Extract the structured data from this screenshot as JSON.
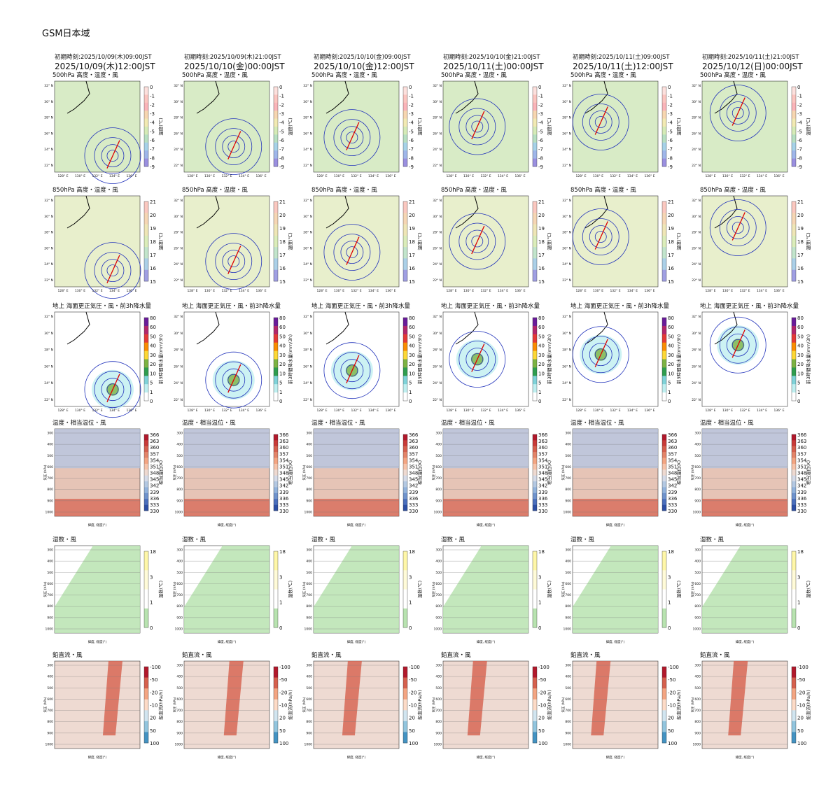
{
  "title": "GSM日本域",
  "columns": [
    {
      "init": "初期時刻:2025/10/09(木)09:00JST",
      "valid": "2025/10/09(木)12:00JST"
    },
    {
      "init": "初期時刻:2025/10/09(木)21:00JST",
      "valid": "2025/10/10(金)00:00JST"
    },
    {
      "init": "初期時刻:2025/10/10(金)09:00JST",
      "valid": "2025/10/10(金)12:00JST"
    },
    {
      "init": "初期時刻:2025/10/10(金)21:00JST",
      "valid": "2025/10/11(土)00:00JST"
    },
    {
      "init": "初期時刻:2025/10/11(土)09:00JST",
      "valid": "2025/10/11(土)12:00JST"
    },
    {
      "init": "初期時刻:2025/10/11(土)21:00JST",
      "valid": "2025/10/12(日)00:00JST"
    }
  ],
  "rows": [
    {
      "title": "500hPa 高度・温度・風",
      "colorbar_label": "温度(℃)",
      "colorbar_ticks": [
        0,
        -1,
        -2,
        -3,
        -4,
        -5,
        -6,
        -7,
        -8,
        -9
      ]
    },
    {
      "title": "850hPa 高度・温度・風",
      "colorbar_label": "温度(℃)",
      "colorbar_ticks": [
        21,
        20,
        19,
        18,
        17,
        16,
        15
      ]
    },
    {
      "title": "地上 海面更正気圧・風・前3h降水量",
      "colorbar_label": "前3時間降水量(mm/3h)",
      "colorbar_ticks": [
        80,
        60,
        50,
        40,
        30,
        20,
        10,
        5,
        1,
        0
      ]
    },
    {
      "title": "温度・相当温位・風",
      "colorbar_label": "相当温位(K)",
      "colorbar_ticks": [
        366,
        363,
        360,
        357,
        354,
        351,
        348,
        345,
        342,
        339,
        336,
        333,
        330
      ]
    },
    {
      "title": "湿数・風",
      "colorbar_label": "湿数(℃)",
      "colorbar_ticks": [
        18,
        3,
        1,
        0
      ]
    },
    {
      "title": "鉛直流・風",
      "colorbar_label": "鉛直流(hPa/h)",
      "colorbar_ticks": [
        -100,
        -50,
        -20,
        -10,
        20,
        50,
        100
      ]
    }
  ],
  "map_axes": {
    "lat": [
      "32° N",
      "30° N",
      "28° N",
      "26° N",
      "24° N",
      "22° N"
    ],
    "lon": [
      "128° E",
      "130° E",
      "132° E",
      "134° E",
      "136° E"
    ]
  },
  "section_axes": {
    "pressure": [
      300,
      400,
      500,
      600,
      700,
      800,
      900,
      1000
    ],
    "x_label": "緯度, 経度(°)",
    "y_label": "気圧 (hPa)"
  }
}
